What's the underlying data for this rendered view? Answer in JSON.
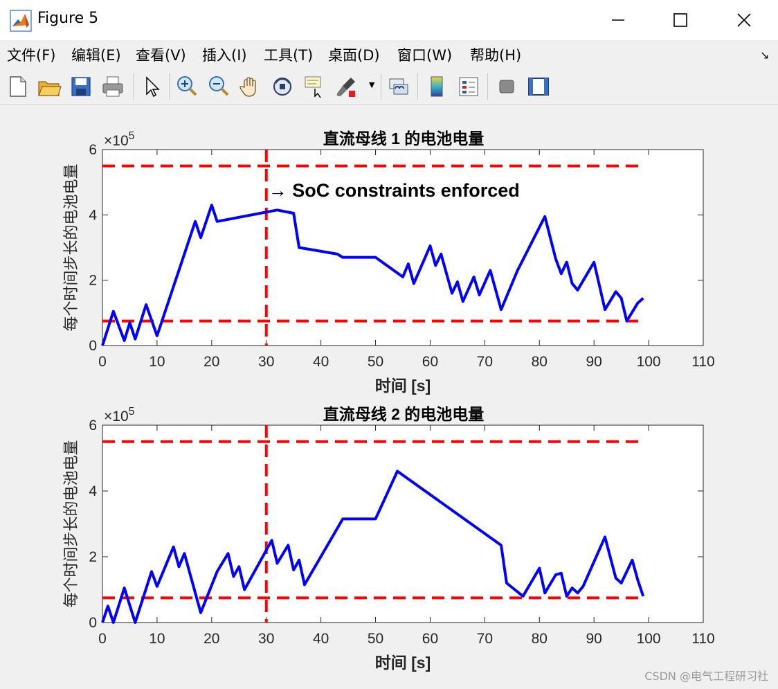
{
  "window": {
    "title": "Figure 5"
  },
  "menu": [
    {
      "label": "文件(F)"
    },
    {
      "label": "编辑(E)"
    },
    {
      "label": "查看(V)"
    },
    {
      "label": "插入(I)"
    },
    {
      "label": "工具(T)"
    },
    {
      "label": "桌面(D)"
    },
    {
      "label": "窗口(W)"
    },
    {
      "label": "帮助(H)"
    }
  ],
  "toolbar": [
    {
      "icon": "new-figure-icon"
    },
    {
      "icon": "open-file-icon"
    },
    {
      "icon": "save-icon"
    },
    {
      "icon": "print-icon"
    },
    {
      "icon": "select-pointer-icon"
    },
    {
      "icon": "zoom-in-icon"
    },
    {
      "icon": "zoom-out-icon"
    },
    {
      "icon": "pan-hand-icon"
    },
    {
      "icon": "rotate-3d-icon"
    },
    {
      "icon": "data-cursor-icon"
    },
    {
      "icon": "brush-icon"
    },
    {
      "icon": "link-plot-icon"
    },
    {
      "icon": "colorbar-icon"
    },
    {
      "icon": "legend-icon"
    },
    {
      "icon": "hide-plot-tools-icon"
    },
    {
      "icon": "show-plot-tools-icon"
    }
  ],
  "colors": {
    "series": "#0000ff",
    "constraint": "#ff0000"
  },
  "chart_data": [
    {
      "type": "line",
      "title": "直流母线 1 的电池电量",
      "xlabel": "时间 [s]",
      "ylabel": "每个时间步长的电池电量",
      "y_exponent": "×10",
      "y_exponent_power": "5",
      "xlim": [
        0,
        110
      ],
      "ylim": [
        0,
        600000
      ],
      "xticks": [
        "0",
        "10",
        "20",
        "30",
        "40",
        "50",
        "60",
        "70",
        "80",
        "90",
        "100",
        "110"
      ],
      "yticks": [
        "0",
        "2",
        "4",
        "6"
      ],
      "annotation": "→ SoC constraints enforced",
      "constraint_time": 30,
      "soc_max": 550000,
      "soc_min": 75000,
      "series": [
        {
          "x": [
            0,
            2,
            4,
            5,
            6,
            8,
            10,
            17,
            18,
            20,
            21,
            32,
            35,
            36,
            43,
            44,
            50,
            55,
            56,
            57,
            60,
            61,
            62,
            64,
            65,
            66,
            68,
            69,
            71,
            73,
            76,
            81,
            83,
            84,
            85,
            86,
            87,
            90,
            92,
            94,
            95,
            96,
            98,
            99
          ],
          "y": [
            0,
            105000,
            15000,
            70000,
            20000,
            125000,
            30000,
            380000,
            330000,
            430000,
            380000,
            415000,
            405000,
            300000,
            280000,
            270000,
            270000,
            210000,
            250000,
            190000,
            305000,
            245000,
            280000,
            160000,
            195000,
            135000,
            210000,
            155000,
            230000,
            110000,
            230000,
            395000,
            265000,
            220000,
            255000,
            190000,
            170000,
            255000,
            110000,
            165000,
            145000,
            75000,
            130000,
            145000
          ]
        }
      ]
    },
    {
      "type": "line",
      "title": "直流母线 2 的电池电量",
      "xlabel": "时间 [s]",
      "ylabel": "每个时间步长的电池电量",
      "y_exponent": "×10",
      "y_exponent_power": "5",
      "xlim": [
        0,
        110
      ],
      "ylim": [
        0,
        600000
      ],
      "xticks": [
        "0",
        "10",
        "20",
        "30",
        "40",
        "50",
        "60",
        "70",
        "80",
        "90",
        "100",
        "110"
      ],
      "yticks": [
        "0",
        "2",
        "4",
        "6"
      ],
      "constraint_time": 30,
      "soc_max": 550000,
      "soc_min": 75000,
      "series": [
        {
          "x": [
            0,
            1,
            2,
            4,
            6,
            9,
            10,
            13,
            14,
            15,
            18,
            21,
            23,
            24,
            25,
            26,
            31,
            32,
            34,
            35,
            36,
            37,
            44,
            50,
            54,
            73,
            74,
            77,
            80,
            81,
            83,
            84,
            85,
            86,
            87,
            88,
            92,
            94,
            95,
            97,
            98,
            99
          ],
          "y": [
            0,
            50000,
            0,
            105000,
            0,
            155000,
            110000,
            230000,
            170000,
            210000,
            30000,
            155000,
            210000,
            140000,
            170000,
            100000,
            250000,
            180000,
            235000,
            160000,
            190000,
            115000,
            315000,
            315000,
            460000,
            235000,
            120000,
            80000,
            165000,
            90000,
            145000,
            150000,
            80000,
            105000,
            90000,
            110000,
            260000,
            135000,
            120000,
            190000,
            130000,
            80000
          ]
        }
      ]
    }
  ],
  "watermark": "CSDN @电气工程研习社"
}
